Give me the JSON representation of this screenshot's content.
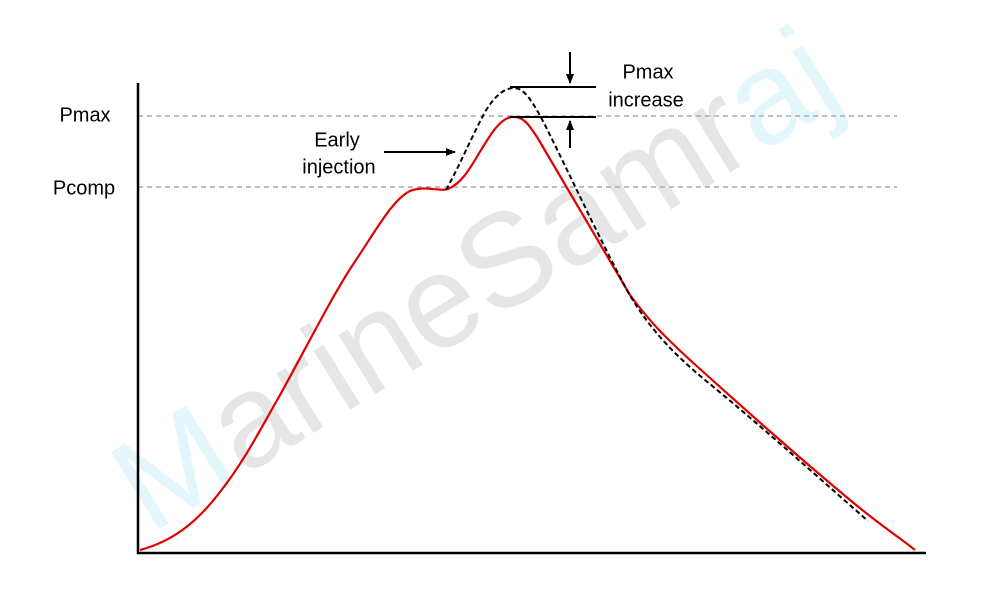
{
  "labels": {
    "pmax": "Pmax",
    "pcomp": "Pcomp"
  },
  "early_injection": {
    "lines": [
      "Early",
      "injection"
    ]
  },
  "pmax_increase": {
    "lines": [
      "Pmax",
      "increase"
    ]
  },
  "watermark": {
    "parts": [
      "M",
      "arineSamr",
      "aj"
    ]
  }
}
